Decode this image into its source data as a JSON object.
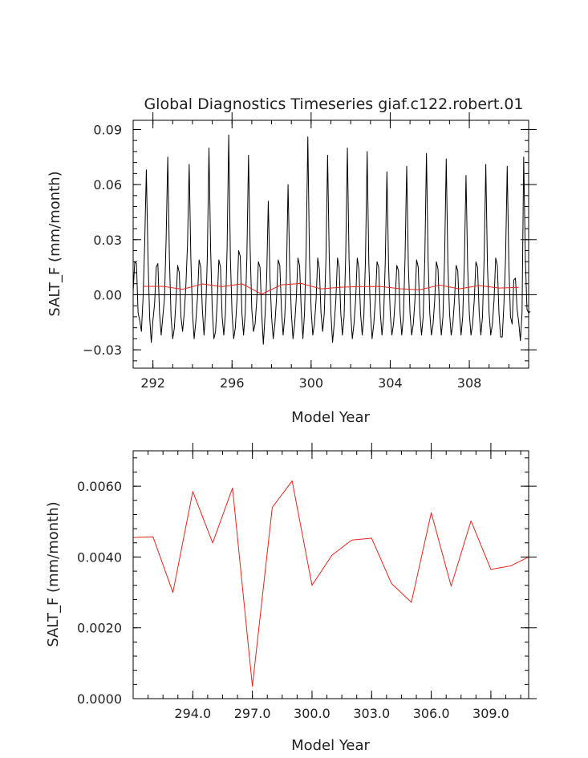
{
  "chart_data": [
    {
      "type": "line",
      "title": "Global Diagnostics Timeseries giaf.c122.robert.01",
      "xlabel": "Model Year",
      "ylabel": "SALT_F (mm/month)",
      "xlim": [
        291.0,
        311.0
      ],
      "ylim": [
        -0.04,
        0.095
      ],
      "xticks": [
        292,
        296,
        300,
        304,
        308
      ],
      "xtick_labels": [
        "292",
        "296",
        "300",
        "304",
        "308"
      ],
      "yticks": [
        -0.03,
        0.0,
        0.03,
        0.06,
        0.09
      ],
      "ytick_labels": [
        "−0.03",
        "0.00",
        "0.03",
        "0.06",
        "0.09"
      ],
      "zero_line": true,
      "series": [
        {
          "color": "#000000",
          "x_start": 291.0,
          "step": 0.0833333,
          "values": [
            0.002,
            0.018,
            0.017,
            -0.01,
            -0.014,
            -0.02,
            -0.002,
            0.028,
            0.068,
            0.02,
            -0.012,
            -0.026,
            -0.014,
            -0.005,
            0.015,
            0.017,
            -0.01,
            -0.022,
            -0.012,
            -0.002,
            0.03,
            0.075,
            0.02,
            -0.012,
            -0.024,
            -0.018,
            -0.003,
            0.016,
            0.012,
            -0.012,
            -0.02,
            -0.01,
            0.005,
            0.028,
            0.071,
            0.02,
            -0.01,
            -0.024,
            -0.015,
            -0.002,
            0.019,
            0.015,
            -0.008,
            -0.022,
            -0.01,
            0.02,
            0.08,
            0.025,
            -0.008,
            -0.024,
            -0.02,
            -0.004,
            0.019,
            0.015,
            -0.012,
            -0.022,
            -0.01,
            0.025,
            0.087,
            0.02,
            -0.01,
            -0.024,
            -0.018,
            -0.003,
            0.024,
            0.021,
            -0.01,
            -0.022,
            -0.01,
            0.02,
            0.076,
            0.025,
            -0.008,
            -0.02,
            -0.016,
            -0.003,
            0.018,
            0.015,
            -0.01,
            -0.027,
            -0.012,
            0.008,
            0.051,
            0.01,
            -0.012,
            -0.024,
            -0.016,
            -0.002,
            0.019,
            0.016,
            -0.008,
            -0.022,
            -0.012,
            0.01,
            0.06,
            0.015,
            -0.01,
            -0.024,
            -0.016,
            -0.002,
            0.02,
            0.016,
            -0.008,
            -0.024,
            -0.01,
            0.025,
            0.086,
            0.02,
            -0.008,
            -0.022,
            -0.016,
            -0.003,
            0.02,
            0.014,
            -0.01,
            -0.02,
            -0.01,
            0.02,
            0.076,
            0.02,
            -0.01,
            -0.026,
            -0.016,
            -0.003,
            0.02,
            0.015,
            -0.01,
            -0.022,
            -0.012,
            0.022,
            0.08,
            0.02,
            -0.01,
            -0.024,
            -0.016,
            -0.003,
            0.02,
            0.014,
            -0.01,
            -0.022,
            -0.012,
            0.02,
            0.078,
            0.018,
            -0.01,
            -0.024,
            -0.016,
            -0.003,
            0.018,
            0.015,
            -0.01,
            -0.022,
            -0.012,
            0.018,
            0.067,
            0.016,
            -0.01,
            -0.022,
            -0.016,
            -0.003,
            0.016,
            0.013,
            -0.01,
            -0.022,
            -0.012,
            0.02,
            0.07,
            0.016,
            -0.01,
            -0.022,
            -0.016,
            -0.003,
            0.019,
            0.015,
            -0.01,
            -0.022,
            -0.012,
            0.02,
            0.077,
            0.018,
            -0.01,
            -0.022,
            -0.016,
            -0.003,
            0.018,
            0.014,
            -0.01,
            -0.022,
            -0.012,
            0.02,
            0.074,
            0.016,
            -0.01,
            -0.022,
            -0.016,
            -0.003,
            0.016,
            0.013,
            -0.01,
            -0.022,
            -0.012,
            0.018,
            0.065,
            0.015,
            -0.01,
            -0.022,
            -0.016,
            -0.003,
            0.018,
            0.015,
            -0.01,
            -0.022,
            -0.012,
            0.02,
            0.071,
            0.016,
            -0.01,
            -0.022,
            -0.016,
            -0.003,
            0.02,
            0.016,
            -0.01,
            -0.023,
            -0.023,
            -0.005,
            0.02,
            0.07,
            0.016,
            -0.012,
            -0.016,
            0.008,
            0.009,
            -0.008,
            -0.015,
            -0.025,
            -0.01,
            0.075,
            0.02,
            -0.008,
            -0.01,
            -0.009
          ]
        },
        {
          "color": "#e8231c",
          "x": [
            291.5,
            292.5,
            293.5,
            294.5,
            295.5,
            296.5,
            297.5,
            298.5,
            299.5,
            300.5,
            301.5,
            302.5,
            303.5,
            304.5,
            305.5,
            306.5,
            307.5,
            308.5,
            309.5,
            310.5
          ],
          "values": [
            0.00455,
            0.00457,
            0.003,
            0.00585,
            0.0044,
            0.00595,
            0.00035,
            0.0054,
            0.00615,
            0.0032,
            0.00405,
            0.00448,
            0.00453,
            0.00325,
            0.00272,
            0.00525,
            0.00318,
            0.00502,
            0.00365,
            0.004
          ]
        }
      ]
    },
    {
      "type": "line",
      "xlabel": "Model Year",
      "ylabel": "SALT_F (mm/month)",
      "xlim": [
        291.0,
        310.9
      ],
      "ylim": [
        0.0,
        0.007
      ],
      "xticks": [
        294.0,
        297.0,
        300.0,
        303.0,
        306.0,
        309.0
      ],
      "xtick_labels": [
        "294.0",
        "297.0",
        "300.0",
        "303.0",
        "306.0",
        "309.0"
      ],
      "yticks": [
        0.0,
        0.002,
        0.004,
        0.006
      ],
      "ytick_labels": [
        "0.0000",
        "0.0020",
        "0.0040",
        "0.0060"
      ],
      "series": [
        {
          "color": "#e8231c",
          "x": [
            291.0,
            292.0,
            293.0,
            294.0,
            295.0,
            296.0,
            297.0,
            298.0,
            299.0,
            300.0,
            301.0,
            302.0,
            303.0,
            304.0,
            305.0,
            306.0,
            307.0,
            308.0,
            309.0,
            310.0,
            310.9
          ],
          "values": [
            0.00455,
            0.00457,
            0.003,
            0.00585,
            0.0044,
            0.00595,
            0.00035,
            0.0054,
            0.00615,
            0.0032,
            0.00405,
            0.00448,
            0.00453,
            0.00325,
            0.00272,
            0.00525,
            0.00318,
            0.00502,
            0.00365,
            0.00375,
            0.004
          ]
        }
      ]
    }
  ]
}
